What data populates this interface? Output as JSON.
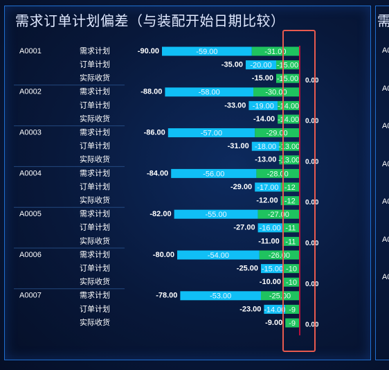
{
  "title": "需求订单计划偏差（与装配开始日期比较）",
  "second_panel": {
    "title_fragment": "需",
    "codes": [
      "A0",
      "A0",
      "A0",
      "A0",
      "A0",
      "A0",
      "A0"
    ]
  },
  "colors": {
    "bar_blue": "#10bff6",
    "bar_green": "#1fc35f",
    "highlight": "#e85a4f",
    "zero_line": "#b8103c"
  },
  "chart_data": {
    "type": "bar",
    "orientation": "horizontal",
    "stacked": true,
    "row_labels": [
      "需求计划",
      "订单计划",
      "实际收货"
    ],
    "groups": [
      {
        "code": "A0001",
        "rows": [
          {
            "label": "需求计划",
            "total": "-90.00",
            "blue": -59,
            "blue_label": "-59.00",
            "green": -31,
            "green_label": "-31.00"
          },
          {
            "label": "订单计划",
            "total": "-35.00",
            "blue": -20,
            "blue_label": "-20.00",
            "green": -15,
            "green_label": "-15.00"
          },
          {
            "label": "实际收货",
            "total": "-15.00",
            "blue": 0,
            "blue_label": "",
            "green": -15,
            "green_label": "-15.00",
            "end_label": "0.00"
          }
        ]
      },
      {
        "code": "A0002",
        "rows": [
          {
            "label": "需求计划",
            "total": "-88.00",
            "blue": -58,
            "blue_label": "-58.00",
            "green": -30,
            "green_label": "-30.00"
          },
          {
            "label": "订单计划",
            "total": "-33.00",
            "blue": -19,
            "blue_label": "-19.00",
            "green": -14,
            "green_label": "-14.00"
          },
          {
            "label": "实际收货",
            "total": "-14.00",
            "blue": 0,
            "blue_label": "",
            "green": -14,
            "green_label": "-14.00",
            "end_label": "0.00"
          }
        ]
      },
      {
        "code": "A0003",
        "rows": [
          {
            "label": "需求计划",
            "total": "-86.00",
            "blue": -57,
            "blue_label": "-57.00",
            "green": -29,
            "green_label": "-29.00"
          },
          {
            "label": "订单计划",
            "total": "-31.00",
            "blue": -18,
            "blue_label": "-18.00",
            "green": -13,
            "green_label": "-13.00"
          },
          {
            "label": "实际收货",
            "total": "-13.00",
            "blue": 0,
            "blue_label": "",
            "green": -13,
            "green_label": "-13.00",
            "end_label": "0.00"
          }
        ]
      },
      {
        "code": "A0004",
        "rows": [
          {
            "label": "需求计划",
            "total": "-84.00",
            "blue": -56,
            "blue_label": "-56.00",
            "green": -28,
            "green_label": "-28.00"
          },
          {
            "label": "订单计划",
            "total": "-29.00",
            "blue": -17,
            "blue_label": "-17.00",
            "green": -12,
            "green_label": "-12"
          },
          {
            "label": "实际收货",
            "total": "-12.00",
            "blue": 0,
            "blue_label": "",
            "green": -12,
            "green_label": "-12",
            "end_label": "0.00"
          }
        ]
      },
      {
        "code": "A0005",
        "rows": [
          {
            "label": "需求计划",
            "total": "-82.00",
            "blue": -55,
            "blue_label": "-55.00",
            "green": -27,
            "green_label": "-27.00"
          },
          {
            "label": "订单计划",
            "total": "-27.00",
            "blue": -16,
            "blue_label": "-16.00",
            "green": -11,
            "green_label": "-11"
          },
          {
            "label": "实际收货",
            "total": "-11.00",
            "blue": 0,
            "blue_label": "",
            "green": -11,
            "green_label": "-11",
            "end_label": "0.00"
          }
        ]
      },
      {
        "code": "A0006",
        "rows": [
          {
            "label": "需求计划",
            "total": "-80.00",
            "blue": -54,
            "blue_label": "-54.00",
            "green": -26,
            "green_label": "-26.00"
          },
          {
            "label": "订单计划",
            "total": "-25.00",
            "blue": -15,
            "blue_label": "-15.00",
            "green": -10,
            "green_label": "-10"
          },
          {
            "label": "实际收货",
            "total": "-10.00",
            "blue": 0,
            "blue_label": "",
            "green": -10,
            "green_label": "-10",
            "end_label": "0.00"
          }
        ]
      },
      {
        "code": "A0007",
        "rows": [
          {
            "label": "需求计划",
            "total": "-78.00",
            "blue": -53,
            "blue_label": "-53.00",
            "green": -25,
            "green_label": "-25.00"
          },
          {
            "label": "订单计划",
            "total": "-23.00",
            "blue": -14,
            "blue_label": "-14.00",
            "green": -9,
            "green_label": "-9"
          },
          {
            "label": "实际收货",
            "total": "-9.00",
            "blue": 0,
            "blue_label": "",
            "green": -9,
            "green_label": "-9",
            "end_label": "0.00"
          }
        ]
      }
    ]
  }
}
